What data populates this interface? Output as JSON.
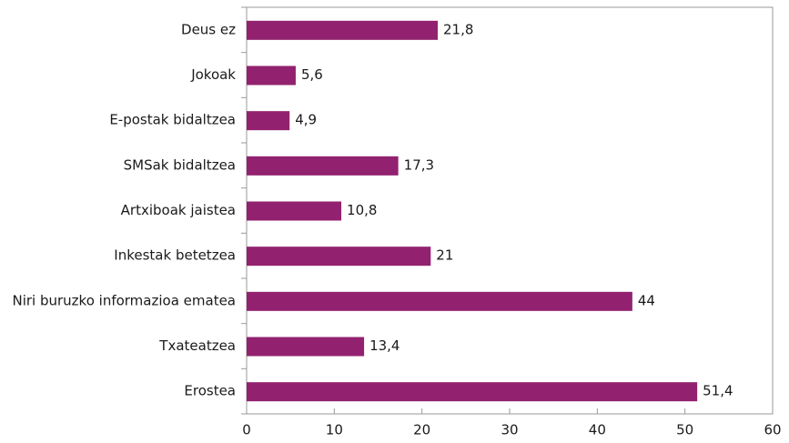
{
  "chart_data": {
    "type": "bar",
    "orientation": "horizontal",
    "categories": [
      "Deus ez",
      "Jokoak",
      "E-postak bidaltzea",
      "SMSak bidaltzea",
      "Artxiboak jaistea",
      "Inkestak betetzea",
      "Niri buruzko informazioa ematea",
      "Txateatzea",
      "Erostea"
    ],
    "values": [
      21.8,
      5.6,
      4.9,
      17.3,
      10.8,
      21,
      44,
      13.4,
      51.4
    ],
    "value_labels": [
      "21,8",
      "5,6",
      "4,9",
      "17,3",
      "10,8",
      "21",
      "44",
      "13,4",
      "51,4"
    ],
    "color": "#92226f",
    "xlim": [
      0,
      60
    ],
    "xticks": [
      0,
      10,
      20,
      30,
      40,
      50,
      60
    ]
  }
}
